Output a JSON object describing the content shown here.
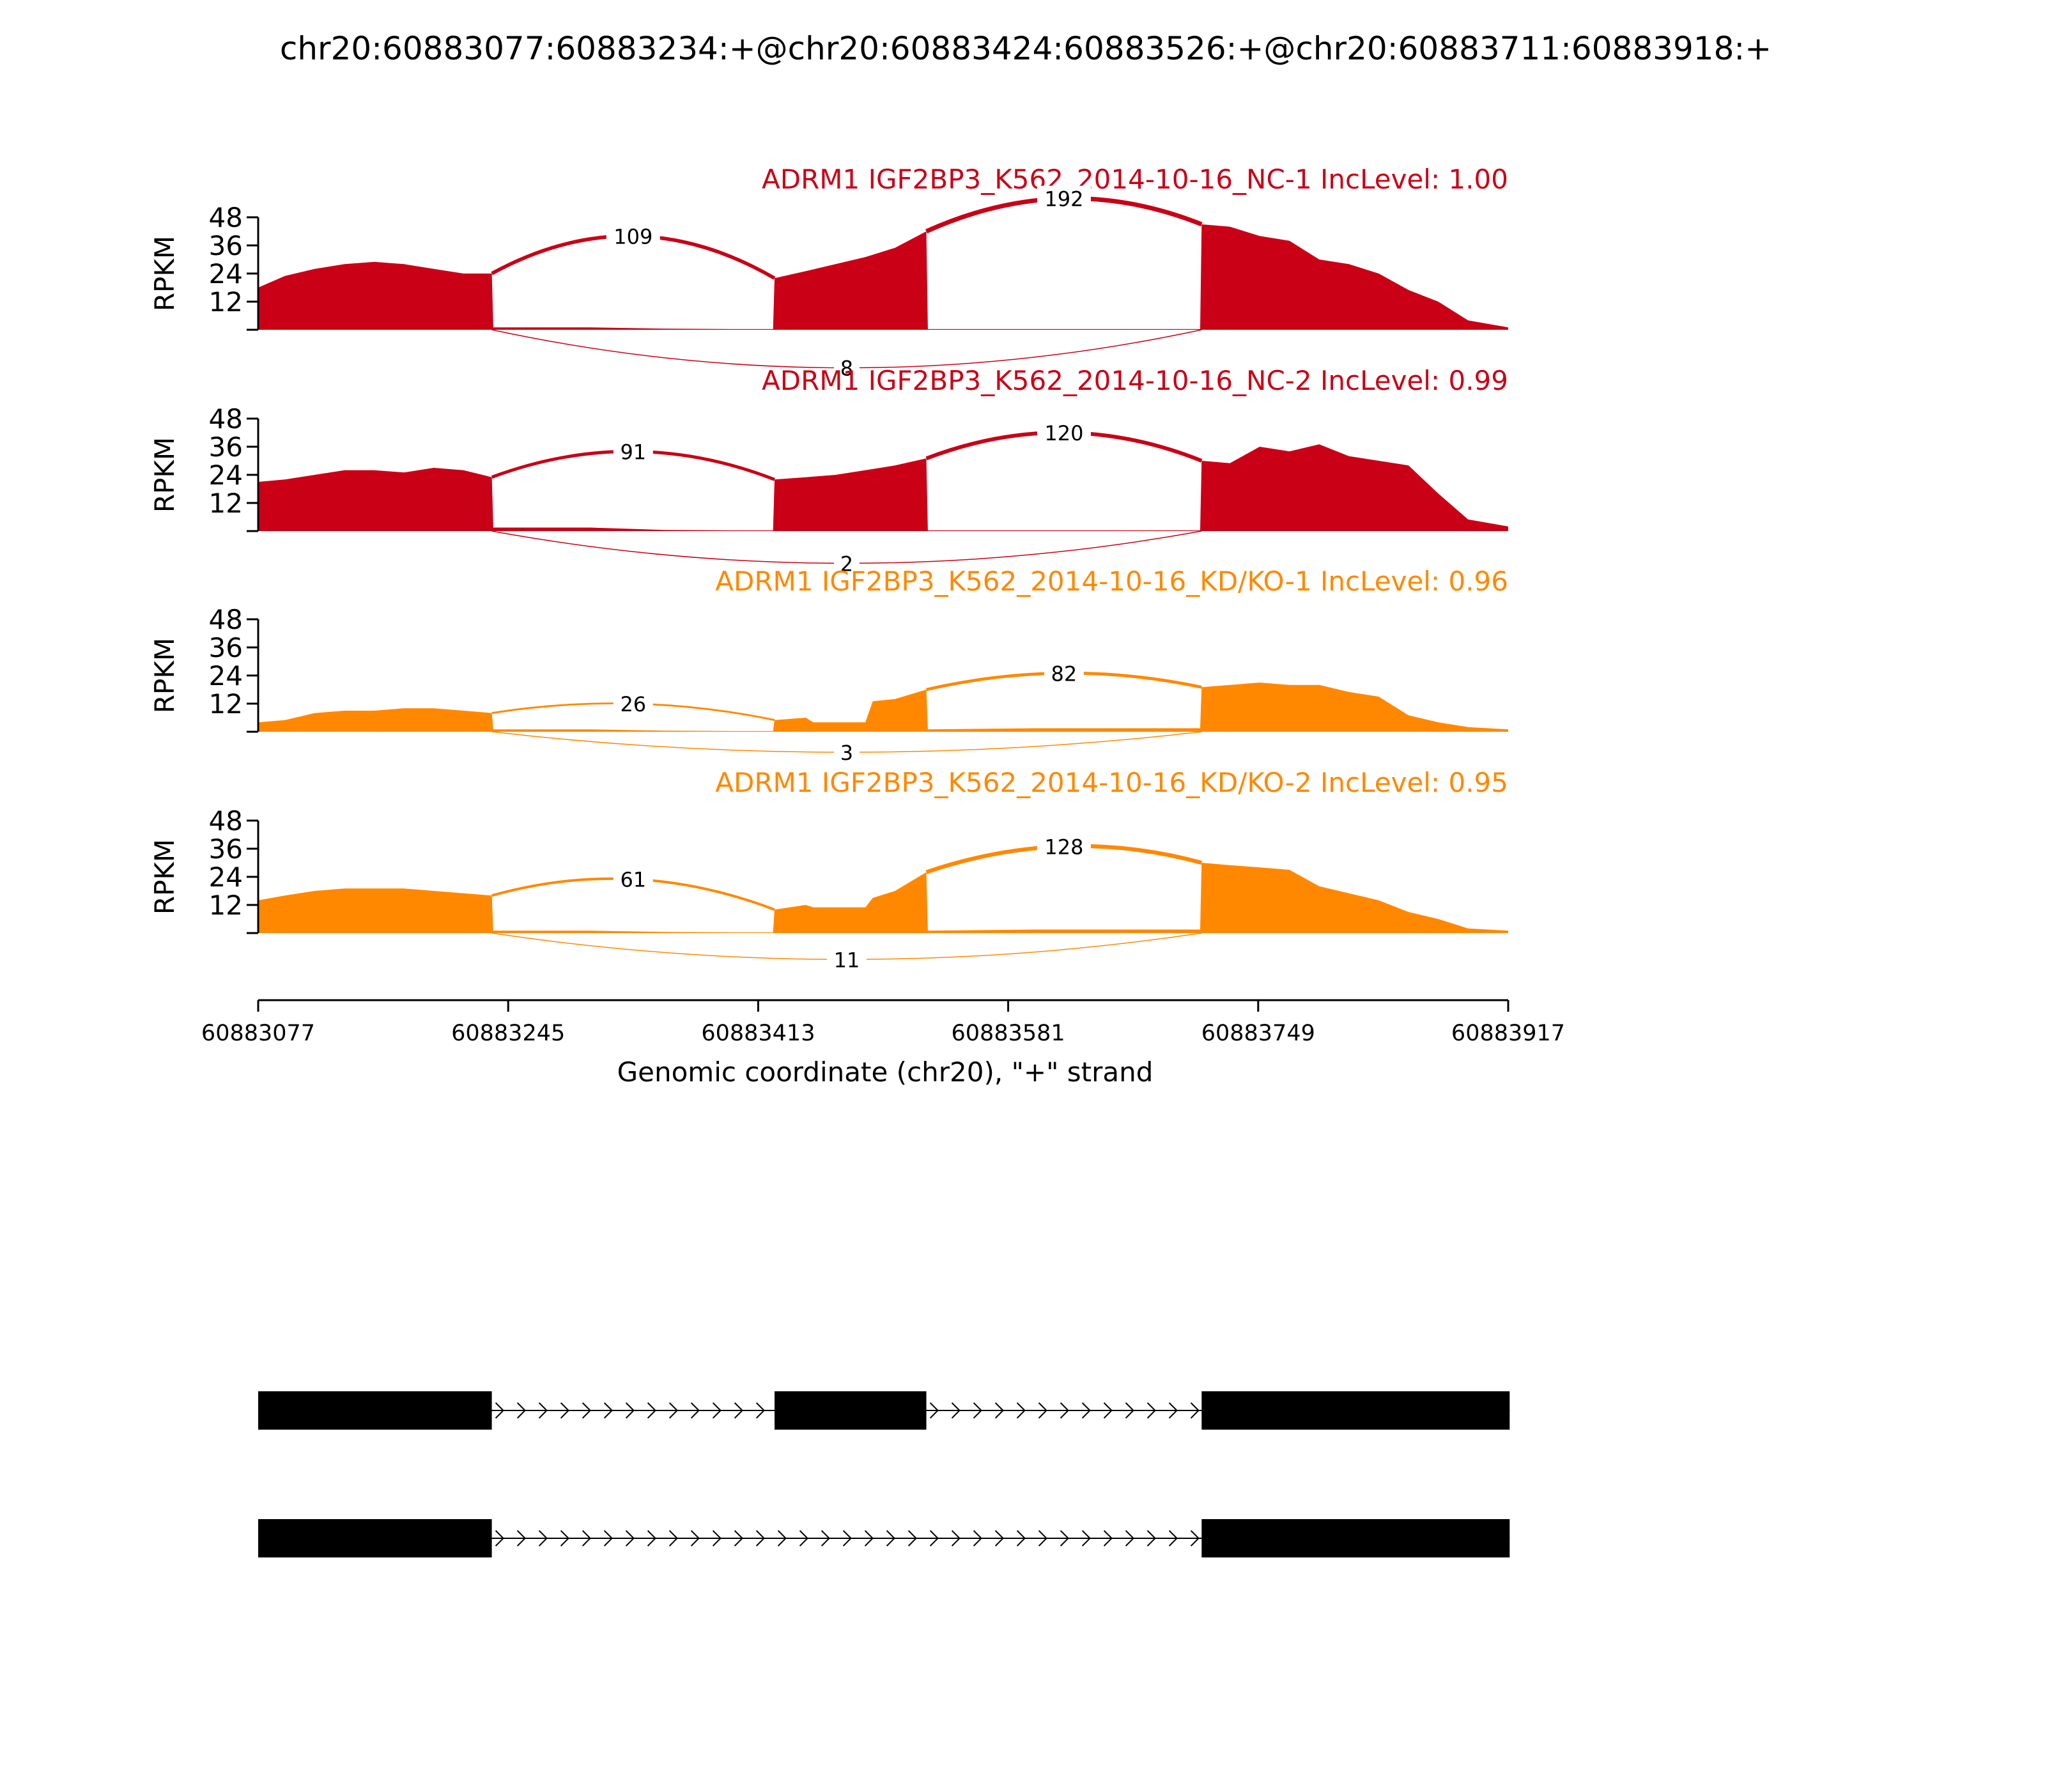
{
  "title": "chr20:60883077:60883234:+@chr20:60883424:60883526:+@chr20:60883711:60883918:+",
  "colors": {
    "nc": "#c90016",
    "kd": "#ff8800",
    "axis": "#000000",
    "gene": "#000000"
  },
  "chart_data": {
    "type": "area",
    "xlabel": "Genomic coordinate (chr20), \"+\" strand",
    "ylabel": "RPKM",
    "xlim": [
      60883077,
      60883917
    ],
    "ylim": [
      0,
      48
    ],
    "x_ticks": [
      60883077,
      60883245,
      60883413,
      60883581,
      60883749,
      60883917
    ],
    "x_tick_labels": [
      "60883077",
      "60883245",
      "60883413",
      "60883581",
      "60883749",
      "60883917"
    ],
    "y_ticks": [
      12,
      24,
      36,
      48
    ],
    "y_tick_labels": [
      "12",
      "24",
      "36",
      "48"
    ],
    "exons": [
      [
        60883077,
        60883234
      ],
      [
        60883424,
        60883526
      ],
      [
        60883711,
        60883918
      ]
    ],
    "tracks": [
      {
        "label": "ADRM1 IGF2BP3_K562_2014-10-16_NC-1 IncLevel: 1.00",
        "color": "nc",
        "coverage": {
          "x": [
            60883077,
            60883095,
            60883115,
            60883135,
            60883155,
            60883175,
            60883195,
            60883215,
            60883234,
            60883235,
            60883300,
            60883350,
            60883400,
            60883423,
            60883424,
            60883445,
            60883465,
            60883485,
            60883505,
            60883526,
            60883527,
            60883600,
            60883650,
            60883710,
            60883711,
            60883730,
            60883750,
            60883770,
            60883790,
            60883810,
            60883830,
            60883850,
            60883870,
            60883890,
            60883917
          ],
          "y": [
            18,
            23,
            26,
            28,
            29,
            28,
            26,
            24,
            24,
            1,
            1,
            0.5,
            0.3,
            0.3,
            22,
            25,
            28,
            31,
            35,
            42,
            0.3,
            0.3,
            0.3,
            0.3,
            45,
            44,
            40,
            38,
            30,
            28,
            24,
            17,
            12,
            4,
            1
          ]
        },
        "junctions": [
          {
            "from": 60883234,
            "to": 60883424,
            "reads": "109",
            "side": "above",
            "height": 40
          },
          {
            "from": 60883526,
            "to": 60883711,
            "reads": "192",
            "side": "above",
            "height": 56
          },
          {
            "from": 60883234,
            "to": 60883711,
            "reads": "8",
            "side": "below",
            "height": 13
          }
        ]
      },
      {
        "label": "ADRM1 IGF2BP3_K562_2014-10-16_NC-2 IncLevel: 0.99",
        "color": "nc",
        "coverage": {
          "x": [
            60883077,
            60883095,
            60883115,
            60883135,
            60883155,
            60883175,
            60883195,
            60883215,
            60883234,
            60883235,
            60883300,
            60883350,
            60883400,
            60883423,
            60883424,
            60883445,
            60883465,
            60883485,
            60883505,
            60883526,
            60883527,
            60883600,
            60883650,
            60883710,
            60883711,
            60883730,
            60883750,
            60883770,
            60883790,
            60883810,
            60883830,
            60883850,
            60883870,
            60883890,
            60883917
          ],
          "y": [
            21,
            22,
            24,
            26,
            26,
            25,
            27,
            26,
            23,
            1.5,
            1.5,
            0.5,
            0.3,
            0.3,
            22,
            23,
            24,
            26,
            28,
            31,
            0.3,
            0.3,
            0.3,
            0.3,
            30,
            29,
            36,
            34,
            37,
            32,
            30,
            28,
            16,
            5,
            2
          ]
        },
        "junctions": [
          {
            "from": 60883234,
            "to": 60883424,
            "reads": "91",
            "side": "above",
            "height": 34
          },
          {
            "from": 60883526,
            "to": 60883711,
            "reads": "120",
            "side": "above",
            "height": 42
          },
          {
            "from": 60883234,
            "to": 60883711,
            "reads": "2",
            "side": "below",
            "height": 11
          }
        ]
      },
      {
        "label": "ADRM1 IGF2BP3_K562_2014-10-16_KD/KO-1 IncLevel: 0.96",
        "color": "kd",
        "coverage": {
          "x": [
            60883077,
            60883095,
            60883115,
            60883135,
            60883155,
            60883175,
            60883195,
            60883215,
            60883234,
            60883235,
            60883300,
            60883350,
            60883400,
            60883423,
            60883424,
            60883445,
            60883450,
            60883485,
            60883490,
            60883505,
            60883526,
            60883527,
            60883600,
            60883650,
            60883710,
            60883711,
            60883730,
            60883750,
            60883770,
            60883790,
            60883810,
            60883830,
            60883850,
            60883870,
            60883890,
            60883917
          ],
          "y": [
            4,
            5,
            8,
            9,
            9,
            10,
            10,
            9,
            8,
            1,
            1,
            0.5,
            0.3,
            0.3,
            5,
            6,
            4,
            4,
            13,
            14,
            18,
            1,
            1.5,
            1.5,
            1.5,
            19,
            20,
            21,
            20,
            20,
            17,
            15,
            7,
            4,
            2,
            1
          ]
        },
        "junctions": [
          {
            "from": 60883234,
            "to": 60883424,
            "reads": "26",
            "side": "above",
            "height": 12
          },
          {
            "from": 60883526,
            "to": 60883711,
            "reads": "82",
            "side": "above",
            "height": 25
          },
          {
            "from": 60883234,
            "to": 60883711,
            "reads": "3",
            "side": "below",
            "height": 7
          }
        ]
      },
      {
        "label": "ADRM1 IGF2BP3_K562_2014-10-16_KD/KO-2 IncLevel: 0.95",
        "color": "kd",
        "coverage": {
          "x": [
            60883077,
            60883095,
            60883115,
            60883135,
            60883155,
            60883175,
            60883195,
            60883215,
            60883234,
            60883235,
            60883300,
            60883350,
            60883400,
            60883423,
            60883424,
            60883445,
            60883450,
            60883485,
            60883490,
            60883505,
            60883526,
            60883527,
            60883600,
            60883650,
            60883710,
            60883711,
            60883730,
            60883750,
            60883770,
            60883790,
            60883810,
            60883830,
            60883850,
            60883870,
            60883890,
            60883917
          ],
          "y": [
            14,
            16,
            18,
            19,
            19,
            19,
            18,
            17,
            16,
            1,
            1,
            0.5,
            0.3,
            0.3,
            10,
            12,
            11,
            11,
            15,
            18,
            26,
            1,
            1.5,
            1.5,
            1.5,
            30,
            29,
            28,
            27,
            20,
            17,
            14,
            9,
            6,
            2,
            1
          ]
        },
        "junctions": [
          {
            "from": 60883234,
            "to": 60883424,
            "reads": "61",
            "side": "above",
            "height": 23
          },
          {
            "from": 60883526,
            "to": 60883711,
            "reads": "128",
            "side": "above",
            "height": 37
          },
          {
            "from": 60883234,
            "to": 60883711,
            "reads": "11",
            "side": "below",
            "height": 9
          }
        ]
      }
    ],
    "transcripts": [
      {
        "exons": [
          [
            60883077,
            60883234
          ],
          [
            60883424,
            60883526
          ],
          [
            60883711,
            60883918
          ]
        ]
      },
      {
        "exons": [
          [
            60883077,
            60883234
          ],
          [
            60883711,
            60883918
          ]
        ]
      }
    ]
  }
}
